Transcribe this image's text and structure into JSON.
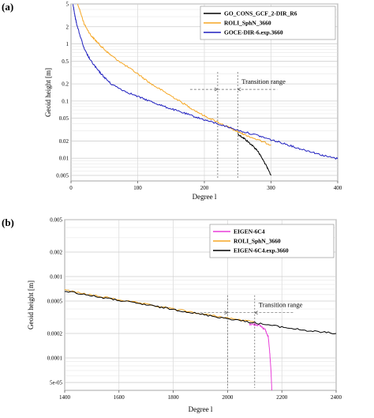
{
  "chart_data": [
    {
      "panel_label": "(a)",
      "type": "line",
      "yscale": "log",
      "xlabel": "Degree l",
      "ylabel": "Geoid height [m]",
      "xlim": [
        0,
        400
      ],
      "ylim": [
        0.004,
        5
      ],
      "x_ticks": [
        0,
        100,
        200,
        300,
        400
      ],
      "y_ticks": [
        {
          "v": 5,
          "label": "5"
        },
        {
          "v": 2,
          "label": "2"
        },
        {
          "v": 1,
          "label": "1"
        },
        {
          "v": 0.5,
          "label": "0.5"
        },
        {
          "v": 0.2,
          "label": "0.2"
        },
        {
          "v": 0.1,
          "label": "0.1"
        },
        {
          "v": 0.05,
          "label": "0.05"
        },
        {
          "v": 0.02,
          "label": "0.02"
        },
        {
          "v": 0.01,
          "label": "0.01"
        },
        {
          "v": 0.005,
          "label": "0.005"
        }
      ],
      "grid": true,
      "legend_position": "top-right",
      "annotation": {
        "text": "Transition range",
        "x_range": [
          220,
          250
        ],
        "y": 0.16
      },
      "series": [
        {
          "name": "GO_CONS_GCF_2-DIR_R6",
          "color": "#000000",
          "points": [
            [
              250,
              0.0265
            ],
            [
              260,
              0.022
            ],
            [
              270,
              0.0175
            ],
            [
              280,
              0.0135
            ],
            [
              290,
              0.0085
            ],
            [
              300,
              0.005
            ]
          ]
        },
        {
          "name": "ROLI_SphN_3660",
          "color": "#f5a623",
          "points": [
            [
              10,
              5
            ],
            [
              20,
              2.2
            ],
            [
              30,
              1.4
            ],
            [
              40,
              1.05
            ],
            [
              50,
              0.8
            ],
            [
              60,
              0.63
            ],
            [
              80,
              0.43
            ],
            [
              100,
              0.3
            ],
            [
              120,
              0.2
            ],
            [
              140,
              0.145
            ],
            [
              160,
              0.105
            ],
            [
              180,
              0.075
            ],
            [
              200,
              0.055
            ],
            [
              220,
              0.043
            ],
            [
              240,
              0.033
            ],
            [
              250,
              0.029
            ],
            [
              260,
              0.026
            ],
            [
              280,
              0.021
            ],
            [
              300,
              0.017
            ]
          ]
        },
        {
          "name": "GOCE-DIR-6.exp.3660",
          "color": "#1f1fbf",
          "points": [
            [
              3,
              5
            ],
            [
              6,
              3
            ],
            [
              10,
              1.9
            ],
            [
              20,
              0.8
            ],
            [
              30,
              0.5
            ],
            [
              40,
              0.35
            ],
            [
              50,
              0.26
            ],
            [
              60,
              0.2
            ],
            [
              80,
              0.15
            ],
            [
              100,
              0.12
            ],
            [
              120,
              0.098
            ],
            [
              140,
              0.08
            ],
            [
              160,
              0.067
            ],
            [
              180,
              0.056
            ],
            [
              200,
              0.047
            ],
            [
              220,
              0.04
            ],
            [
              250,
              0.031
            ],
            [
              280,
              0.025
            ],
            [
              300,
              0.021
            ],
            [
              320,
              0.018
            ],
            [
              340,
              0.015
            ],
            [
              360,
              0.013
            ],
            [
              380,
              0.011
            ],
            [
              400,
              0.0098
            ]
          ]
        }
      ]
    },
    {
      "panel_label": "(b)",
      "type": "line",
      "yscale": "log",
      "xlabel": "Degree l",
      "ylabel": "Geoid height [m]",
      "xlim": [
        1400,
        2400
      ],
      "ylim": [
        4e-05,
        0.005
      ],
      "x_ticks": [
        1400,
        1600,
        1800,
        2000,
        2200,
        2400
      ],
      "y_ticks": [
        {
          "v": 0.005,
          "label": "0.005"
        },
        {
          "v": 0.002,
          "label": "0.002"
        },
        {
          "v": 0.001,
          "label": "0.001"
        },
        {
          "v": 0.0005,
          "label": "0.0005"
        },
        {
          "v": 0.0002,
          "label": "0.0002"
        },
        {
          "v": 0.0001,
          "label": "0.0001"
        },
        {
          "v": 5e-05,
          "label": "5e-05"
        }
      ],
      "grid": true,
      "legend_position": "top-right",
      "annotation": {
        "text": "Transition range",
        "x_range": [
          2000,
          2100
        ],
        "y": 0.00036
      },
      "series": [
        {
          "name": "EIGEN-6C4",
          "color": "#e83fd8",
          "points": [
            [
              2080,
              0.00026
            ],
            [
              2100,
              0.000258
            ],
            [
              2120,
              0.00025
            ],
            [
              2140,
              0.00022
            ],
            [
              2150,
              0.00018
            ],
            [
              2155,
              0.00012
            ],
            [
              2160,
              7e-05
            ],
            [
              2163,
              4e-05
            ]
          ]
        },
        {
          "name": "ROLI_SphN_3660",
          "color": "#f5a623",
          "points": [
            [
              1400,
              0.00068
            ],
            [
              1500,
              0.00059
            ],
            [
              1600,
              0.00052
            ],
            [
              1700,
              0.000455
            ],
            [
              1800,
              0.0004
            ],
            [
              1900,
              0.00035
            ],
            [
              2000,
              0.00031
            ],
            [
              2100,
              0.000275
            ]
          ]
        },
        {
          "name": "EIGEN-6C4.exp.3660",
          "color": "#000000",
          "points": [
            [
              1400,
              0.00067
            ],
            [
              1500,
              0.00058
            ],
            [
              1600,
              0.00051
            ],
            [
              1700,
              0.00045
            ],
            [
              1800,
              0.000395
            ],
            [
              1900,
              0.000345
            ],
            [
              2000,
              0.000305
            ],
            [
              2100,
              0.00027
            ],
            [
              2200,
              0.00024
            ],
            [
              2300,
              0.000215
            ],
            [
              2400,
              0.0002
            ]
          ]
        }
      ]
    }
  ]
}
